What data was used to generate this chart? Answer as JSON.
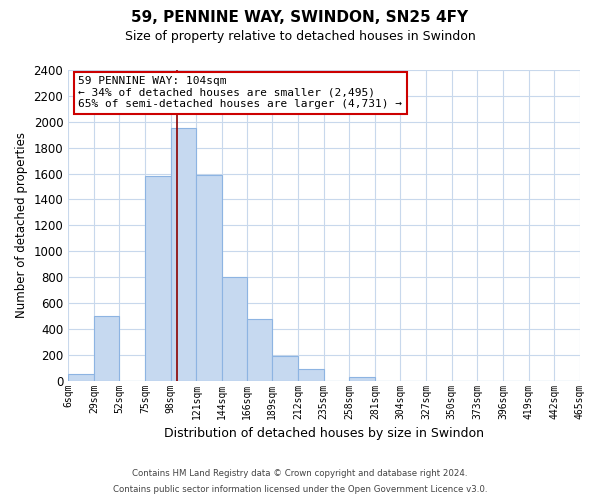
{
  "title": "59, PENNINE WAY, SWINDON, SN25 4FY",
  "subtitle": "Size of property relative to detached houses in Swindon",
  "xlabel": "Distribution of detached houses by size in Swindon",
  "ylabel": "Number of detached properties",
  "bin_labels": [
    "6sqm",
    "29sqm",
    "52sqm",
    "75sqm",
    "98sqm",
    "121sqm",
    "144sqm",
    "166sqm",
    "189sqm",
    "212sqm",
    "235sqm",
    "258sqm",
    "281sqm",
    "304sqm",
    "327sqm",
    "350sqm",
    "373sqm",
    "396sqm",
    "419sqm",
    "442sqm",
    "465sqm"
  ],
  "bin_edges": [
    6,
    29,
    52,
    75,
    98,
    121,
    144,
    166,
    189,
    212,
    235,
    258,
    281,
    304,
    327,
    350,
    373,
    396,
    419,
    442,
    465
  ],
  "bar_heights": [
    50,
    500,
    0,
    1580,
    1950,
    1590,
    800,
    480,
    190,
    90,
    0,
    30,
    0,
    0,
    0,
    0,
    0,
    0,
    0,
    0
  ],
  "bar_color": "#c6d9f0",
  "bar_edge_color": "#8db4e2",
  "property_line_x": 104,
  "property_line_color": "#8b0000",
  "ylim": [
    0,
    2400
  ],
  "yticks": [
    0,
    200,
    400,
    600,
    800,
    1000,
    1200,
    1400,
    1600,
    1800,
    2000,
    2200,
    2400
  ],
  "annotation_title": "59 PENNINE WAY: 104sqm",
  "annotation_line1": "← 34% of detached houses are smaller (2,495)",
  "annotation_line2": "65% of semi-detached houses are larger (4,731) →",
  "annotation_box_color": "#ffffff",
  "annotation_box_edge": "#cc0000",
  "footer_line1": "Contains HM Land Registry data © Crown copyright and database right 2024.",
  "footer_line2": "Contains public sector information licensed under the Open Government Licence v3.0.",
  "background_color": "#ffffff",
  "grid_color": "#c8d8ec"
}
